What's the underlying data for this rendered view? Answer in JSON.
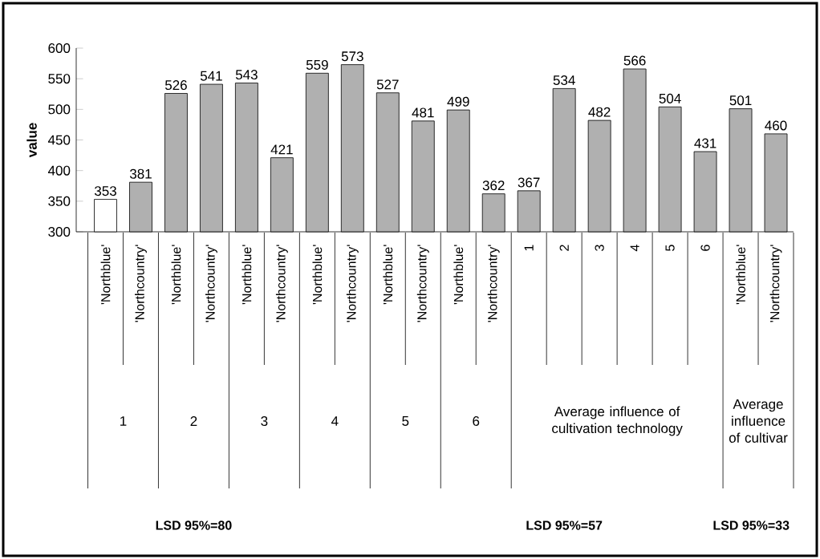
{
  "chart_data": {
    "type": "bar",
    "ylabel": "value",
    "categories": [
      "'Northblue'",
      "'Northcountry'",
      "'Northblue'",
      "'Northcountry'",
      "'Northblue'",
      "'Northcountry'",
      "'Northblue'",
      "'Northcountry'",
      "'Northblue'",
      "'Northcountry'",
      "'Northblue'",
      "'Northcountry'",
      "1",
      "2",
      "3",
      "4",
      "5",
      "6",
      "'Northblue'",
      "'Northcountry'"
    ],
    "values": [
      353,
      381,
      526,
      541,
      543,
      421,
      559,
      573,
      527,
      481,
      499,
      362,
      367,
      534,
      482,
      566,
      504,
      431,
      501,
      460
    ],
    "colors": [
      "#ffffff",
      "#b0b0b0",
      "#b0b0b0",
      "#b0b0b0",
      "#b0b0b0",
      "#b0b0b0",
      "#b0b0b0",
      "#b0b0b0",
      "#b0b0b0",
      "#b0b0b0",
      "#b0b0b0",
      "#b0b0b0",
      "#b0b0b0",
      "#b0b0b0",
      "#b0b0b0",
      "#b0b0b0",
      "#b0b0b0",
      "#b0b0b0",
      "#b0b0b0",
      "#b0b0b0"
    ],
    "ylim": [
      300,
      600
    ],
    "yticks": [
      300,
      350,
      400,
      450,
      500,
      550,
      600
    ],
    "data_labels": true,
    "grid": false,
    "annotations": [
      "1",
      "2",
      "3",
      "4",
      "5",
      "6",
      "Average influence of cultivation technology",
      "Average influence of cultivar",
      "LSD 95%=80",
      "LSD 95%=57",
      "LSD 95%=33"
    ]
  }
}
